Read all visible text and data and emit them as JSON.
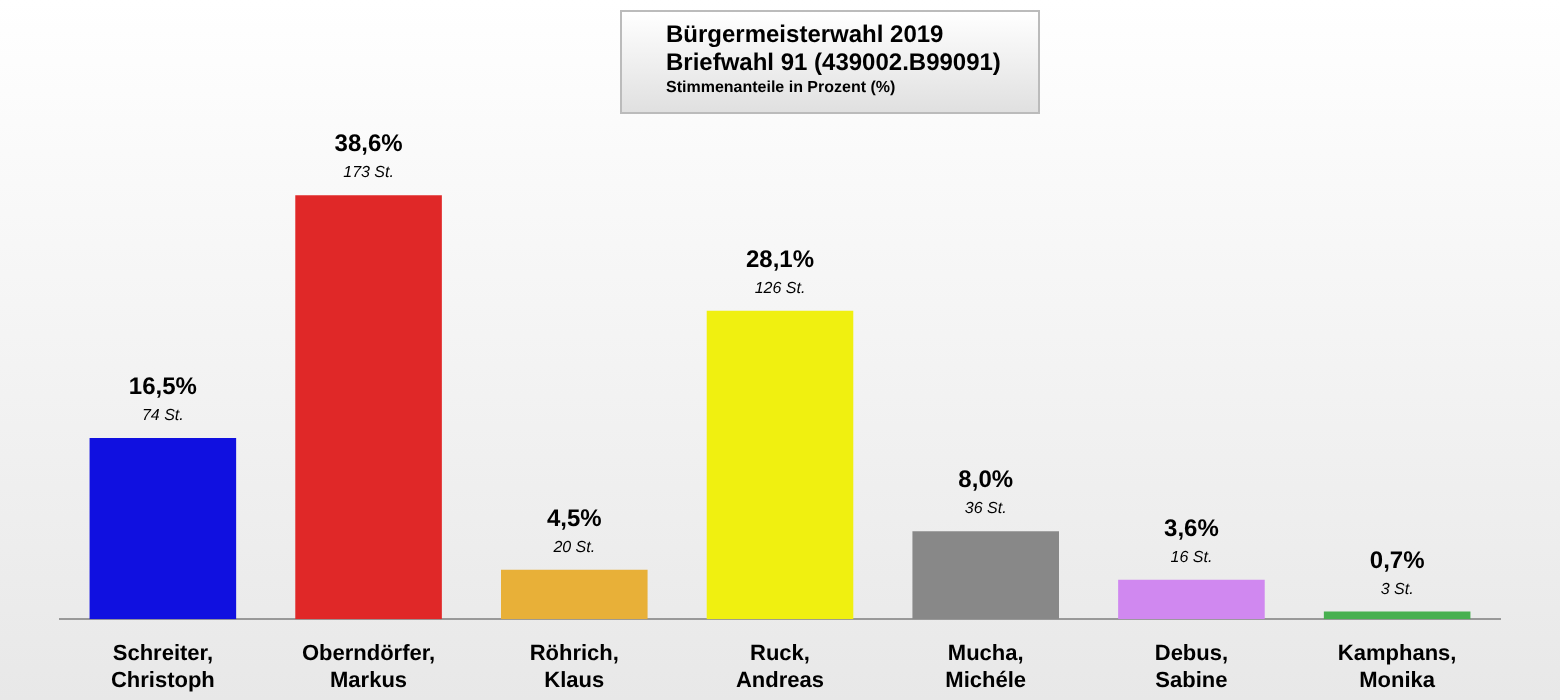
{
  "chart_data": {
    "type": "bar",
    "title": "Bürgermeisterwahl 2019",
    "subtitle": "Briefwahl 91 (439002.B99091)",
    "categories": [
      "Schreiter, Christoph",
      "Oberndörfer, Markus",
      "Röhrich, Klaus",
      "Ruck, Andreas",
      "Mucha, Michéle",
      "Debus, Sabine",
      "Kamphans, Monika"
    ],
    "values": [
      16.5,
      38.6,
      4.5,
      28.1,
      8.0,
      3.6,
      0.7
    ],
    "colors": [
      "#1010e0",
      "#e02828",
      "#e8b038",
      "#f0f010",
      "#888888",
      "#d088f0",
      "#48b050"
    ],
    "value_labels": [
      "16,5%",
      "38,6%",
      "4,5%",
      "28,1%",
      "8,0%",
      "3,6%",
      "0,7%"
    ],
    "annotations": [
      "Stimmenanteile in Prozent (%)",
      {
        "text": "74 St.",
        "x": "Schreiter, Christoph",
        "y": 16.5
      },
      {
        "text": "173 St.",
        "x": "Oberndörfer, Markus",
        "y": 38.6
      },
      {
        "text": "20 St.",
        "x": "Röhrich, Klaus",
        "y": 4.5
      },
      {
        "text": "126 St.",
        "x": "Ruck, Andreas",
        "y": 28.1
      },
      {
        "text": "36 St.",
        "x": "Mucha, Michéle",
        "y": 8.0
      },
      {
        "text": "16 St.",
        "x": "Debus, Sabine",
        "y": 3.6
      },
      {
        "text": "3 St.",
        "x": "Kamphans, Monika",
        "y": 0.7
      }
    ],
    "grid": false,
    "legend": false
  }
}
